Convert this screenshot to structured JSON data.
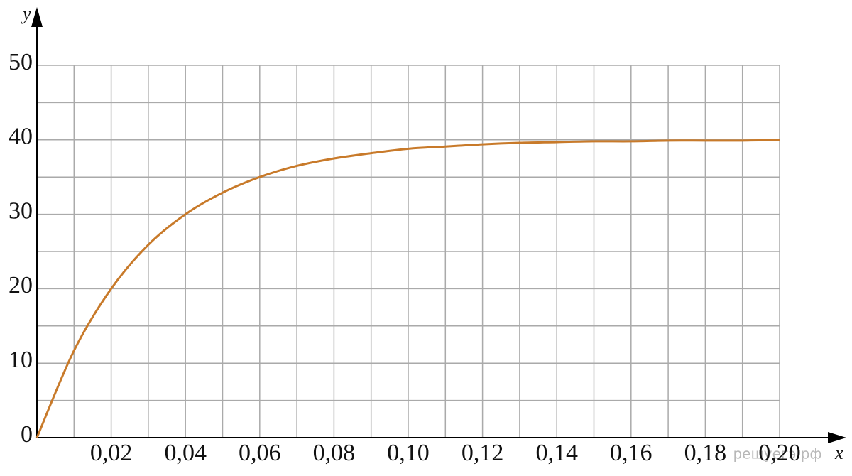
{
  "chart_data": {
    "type": "line",
    "x_label": "x",
    "y_label": "y",
    "watermark": "решуегэ.рф",
    "x": [
      0,
      0.01,
      0.02,
      0.03,
      0.04,
      0.05,
      0.06,
      0.07,
      0.08,
      0.09,
      0.1,
      0.11,
      0.12,
      0.13,
      0.14,
      0.15,
      0.16,
      0.17,
      0.18,
      0.19,
      0.2
    ],
    "series": [
      {
        "color": "#c87a2a",
        "values": [
          0,
          11.7,
          20,
          25.9,
          30,
          32.9,
          35,
          36.5,
          37.5,
          38.2,
          38.8,
          39.1,
          39.4,
          39.6,
          39.7,
          39.8,
          39.8,
          39.9,
          39.9,
          39.9,
          40
        ]
      }
    ],
    "xlim": [
      0,
      0.2
    ],
    "ylim": [
      0,
      50
    ],
    "xticks": [
      {
        "value": 0.02,
        "label": "0,02"
      },
      {
        "value": 0.04,
        "label": "0,04"
      },
      {
        "value": 0.06,
        "label": "0,06"
      },
      {
        "value": 0.08,
        "label": "0,08"
      },
      {
        "value": 0.1,
        "label": "0,10"
      },
      {
        "value": 0.12,
        "label": "0,12"
      },
      {
        "value": 0.14,
        "label": "0,14"
      },
      {
        "value": 0.16,
        "label": "0,16"
      },
      {
        "value": 0.18,
        "label": "0,18"
      },
      {
        "value": 0.2,
        "label": "0,20"
      }
    ],
    "yticks": [
      0,
      10,
      20,
      30,
      40,
      50
    ],
    "x_minor_ticks": [
      0.01,
      0.03,
      0.05,
      0.07,
      0.09,
      0.11,
      0.13,
      0.15,
      0.17,
      0.19
    ],
    "y_minor_ticks": [
      5,
      15,
      25,
      35,
      45
    ],
    "grid": true
  }
}
